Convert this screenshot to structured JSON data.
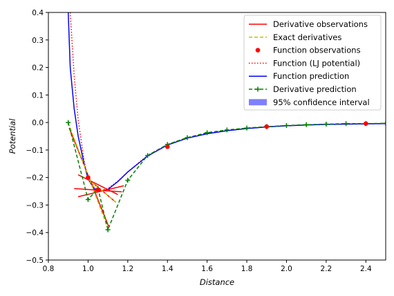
{
  "chart_data": {
    "type": "line",
    "xlabel": "Distance",
    "ylabel": "Potential",
    "xlim": [
      0.8,
      2.5
    ],
    "ylim": [
      -0.5,
      0.4
    ],
    "xticks": [
      0.8,
      1.0,
      1.2,
      1.4,
      1.6,
      1.8,
      2.0,
      2.2,
      2.4
    ],
    "xtick_labels": [
      "0.8",
      "1.0",
      "1.2",
      "1.4",
      "1.6",
      "1.8",
      "2.0",
      "2.2",
      "2.4"
    ],
    "yticks": [
      0.4,
      0.3,
      0.2,
      0.1,
      0.0,
      -0.1,
      -0.2,
      -0.3,
      -0.4,
      -0.5
    ],
    "ytick_labels": [
      "0.4",
      "0.3",
      "0.2",
      "0.1",
      "0.0",
      "−0.1",
      "−0.2",
      "−0.3",
      "−0.4",
      "−0.5"
    ],
    "grid": false,
    "legend_position": "top-right",
    "colors": {
      "derivative_observations": "#ff0000",
      "exact_derivatives": "#bfbf00",
      "function_observations": "#ff0000",
      "function_lj": "#ff0000",
      "function_prediction": "#0000ff",
      "derivative_prediction": "#008000",
      "confidence_interval": "#8080ff"
    },
    "legend": [
      {
        "label": "Derivative observations",
        "style": "solid",
        "color": "#ff0000"
      },
      {
        "label": "Exact derivatives",
        "style": "dashed",
        "color": "#bfbf00"
      },
      {
        "label": "Function observations",
        "style": "marker",
        "color": "#ff0000"
      },
      {
        "label": "Function (LJ potential)",
        "style": "dotted",
        "color": "#ff0000"
      },
      {
        "label": "Function prediction",
        "style": "solid",
        "color": "#0000ff"
      },
      {
        "label": "Derivative prediction",
        "style": "dashed-plus",
        "color": "#008000"
      },
      {
        "label": "95% confidence interval",
        "style": "patch",
        "color": "#8080ff"
      }
    ],
    "function_observations": {
      "x": [
        1.0,
        1.05,
        1.4,
        1.9,
        2.4
      ],
      "y": [
        -0.2,
        -0.245,
        -0.088,
        -0.015,
        -0.004
      ]
    },
    "derivative_observations": [
      {
        "x0": 0.95,
        "y0": -0.19,
        "x1": 1.15,
        "y1": -0.262
      },
      {
        "x0": 0.93,
        "y0": -0.24,
        "x1": 1.17,
        "y1": -0.252
      },
      {
        "x0": 0.95,
        "y0": -0.27,
        "x1": 1.18,
        "y1": -0.23
      },
      {
        "x0": 1.0,
        "y0": -0.205,
        "x1": 1.14,
        "y1": -0.29
      },
      {
        "x0": 0.905,
        "y0": -0.02,
        "x1": 1.105,
        "y1": -0.38
      }
    ],
    "exact_derivatives": [
      {
        "x0": 0.91,
        "y0": -0.02,
        "x1": 1.1,
        "y1": -0.385
      },
      {
        "x0": 1.0,
        "y0": -0.205,
        "x1": 1.14,
        "y1": -0.29
      }
    ],
    "function_lj": {
      "x": [
        0.91,
        0.93,
        0.95,
        0.98,
        1.0,
        1.03,
        1.06,
        1.1,
        1.15,
        1.2,
        1.3,
        1.4,
        1.5,
        1.6,
        1.7,
        1.8,
        1.9,
        2.0,
        2.1,
        2.2,
        2.3,
        2.4,
        2.5
      ],
      "y": [
        0.4,
        0.17,
        0.01,
        -0.14,
        -0.2,
        -0.235,
        -0.247,
        -0.24,
        -0.213,
        -0.18,
        -0.12,
        -0.08,
        -0.055,
        -0.04,
        -0.029,
        -0.021,
        -0.016,
        -0.012,
        -0.009,
        -0.007,
        -0.006,
        -0.005,
        -0.004
      ]
    },
    "function_prediction": {
      "x": [
        0.9,
        0.91,
        0.93,
        0.95,
        0.98,
        1.0,
        1.03,
        1.06,
        1.1,
        1.15,
        1.2,
        1.3,
        1.4,
        1.5,
        1.6,
        1.7,
        1.8,
        1.9,
        2.0,
        2.1,
        2.2,
        2.3,
        2.4,
        2.5
      ],
      "y": [
        0.4,
        0.2,
        0.05,
        -0.05,
        -0.15,
        -0.205,
        -0.24,
        -0.25,
        -0.243,
        -0.215,
        -0.18,
        -0.122,
        -0.082,
        -0.057,
        -0.041,
        -0.03,
        -0.022,
        -0.016,
        -0.012,
        -0.009,
        -0.007,
        -0.006,
        -0.005,
        -0.004
      ]
    },
    "derivative_prediction": {
      "x": [
        0.9,
        1.0,
        1.05,
        1.1,
        1.2,
        1.3,
        1.4,
        1.5,
        1.6,
        1.7,
        1.8,
        1.9,
        2.0,
        2.1,
        2.2,
        2.3,
        2.4,
        2.5
      ],
      "y": [
        0.0,
        -0.28,
        -0.24,
        -0.39,
        -0.21,
        -0.12,
        -0.08,
        -0.055,
        -0.037,
        -0.027,
        -0.02,
        -0.015,
        -0.011,
        -0.008,
        -0.006,
        -0.004,
        -0.004,
        -0.003
      ]
    }
  }
}
